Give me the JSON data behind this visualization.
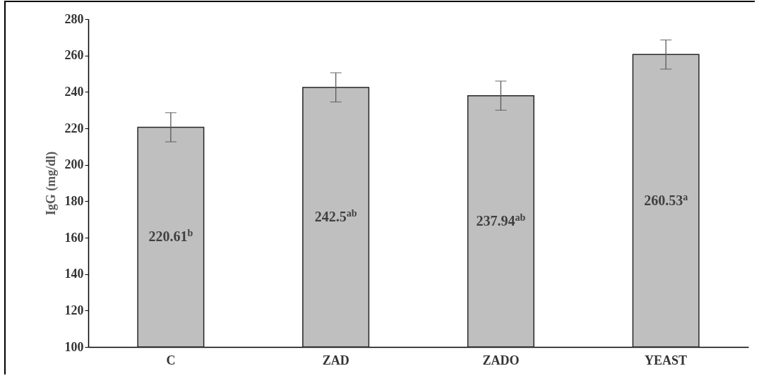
{
  "chart_data": {
    "type": "bar",
    "ylabel": "IgG (mg/dl)",
    "categories": [
      "C",
      "ZAD",
      "ZADO",
      "YEAST"
    ],
    "values": [
      220.61,
      242.5,
      237.94,
      260.53
    ],
    "errors": [
      8,
      8,
      8,
      8
    ],
    "value_labels": [
      "220.61$^{b}$",
      "242.5$^{ab}$",
      "237.94$^{ab}$",
      "260.53$^{a}$"
    ],
    "color": "#bfbfbf",
    "ylim": [
      100,
      280
    ],
    "yticks": [
      100,
      120,
      140,
      160,
      180,
      200,
      220,
      240,
      260,
      280
    ],
    "grid": false
  }
}
